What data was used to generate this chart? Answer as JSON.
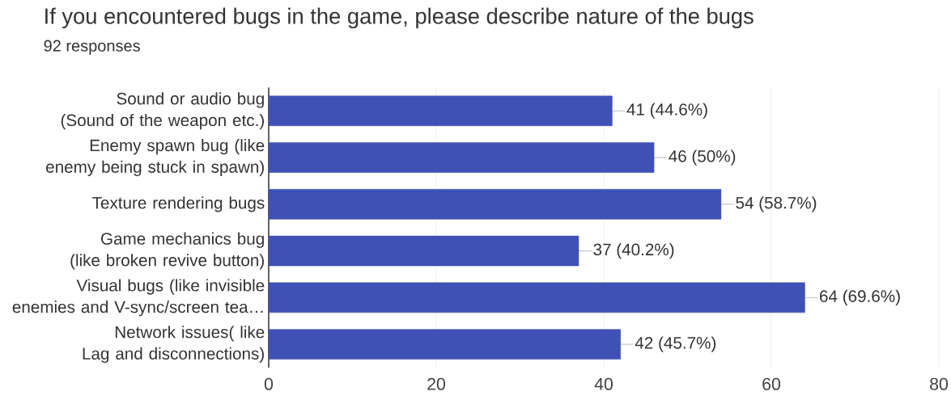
{
  "chart_data": {
    "type": "bar",
    "orientation": "horizontal",
    "title": "If you encountered bugs in the game, please describe nature of the bugs",
    "subtitle": "92 responses",
    "categories": [
      "Sound or audio bug (Sound of the weapon etc.)",
      "Enemy spawn bug (like enemy being stuck in spawn)",
      "Texture rendering bugs",
      "Game mechanics bug (like broken revive button)",
      "Visual bugs (like invisible enemies and V-sync/screen tea…",
      "Network issues( like Lag and disconnections)"
    ],
    "values": [
      41,
      46,
      54,
      37,
      64,
      42
    ],
    "value_labels": [
      "41 (44.6%)",
      "46 (50%)",
      "54 (58.7%)",
      "37 (40.2%)",
      "64 (69.6%)",
      "42 (45.7%)"
    ],
    "color": "#3f51b5",
    "xlim": [
      0,
      80
    ],
    "xticks": [
      0,
      20,
      40,
      60,
      80
    ],
    "grid": "x"
  }
}
